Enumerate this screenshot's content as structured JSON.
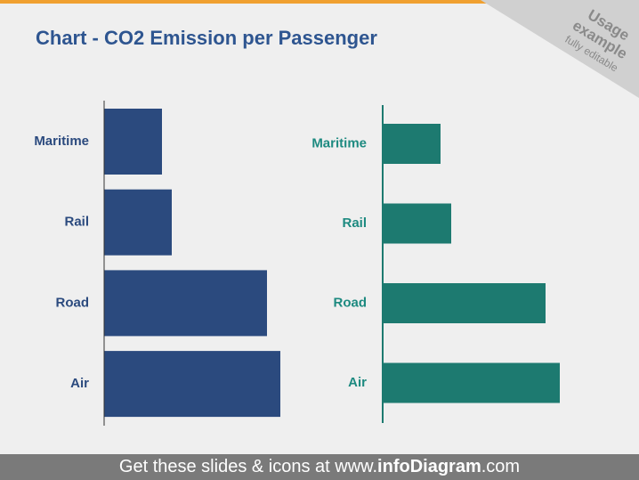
{
  "title": "Chart - CO2 Emission per Passenger",
  "banner": {
    "line1": "Usage",
    "line2": "example",
    "line3": "fully editable"
  },
  "footer": {
    "text": "Get these slides & icons at www.",
    "brand": "infoDiagram",
    "suffix": ".com"
  },
  "chart_data": [
    {
      "type": "bar",
      "orientation": "horizontal",
      "categories": [
        "Maritime",
        "Rail",
        "Road",
        "Air"
      ],
      "values": [
        65,
        76,
        183,
        198
      ],
      "color": "#2b4a7e",
      "label_color": "#2b4a7e",
      "xlim": [
        0,
        200
      ]
    },
    {
      "type": "bar",
      "orientation": "horizontal",
      "categories": [
        "Maritime",
        "Rail",
        "Road",
        "Air"
      ],
      "values": [
        65,
        77,
        183,
        199
      ],
      "color": "#1d7a70",
      "label_color": "#1d8a80",
      "xlim": [
        0,
        200
      ]
    }
  ]
}
